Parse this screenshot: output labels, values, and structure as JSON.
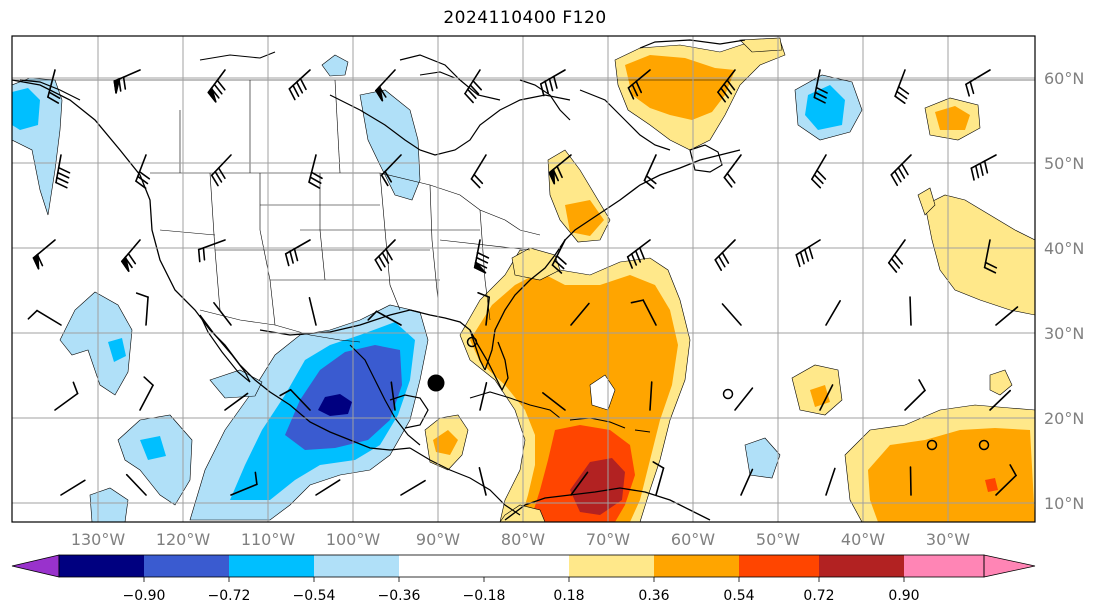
{
  "title": "2024110400 F120",
  "map": {
    "lon_labels": [
      "130°W",
      "120°W",
      "110°W",
      "100°W",
      "90°W",
      "80°W",
      "70°W",
      "60°W",
      "50°W",
      "40°W",
      "30°W"
    ],
    "lat_labels": [
      "60°N",
      "50°N",
      "40°N",
      "30°N",
      "20°N",
      "10°N"
    ],
    "gridlines": true
  },
  "colorbar": {
    "ticks": [
      "−0.90",
      "−0.72",
      "−0.54",
      "−0.36",
      "−0.18",
      "0.18",
      "0.36",
      "0.54",
      "0.72",
      "0.90"
    ],
    "colors": [
      "#9932cc",
      "#000080",
      "#3a5bd0",
      "#00bfff",
      "#b0e0f8",
      "#ffffff",
      "#ffe88a",
      "#ffa500",
      "#ff4500",
      "#b22222",
      "#ff85b5"
    ],
    "extend": "both"
  },
  "colors": {
    "neg_light": "#b0e0f8",
    "neg_mid": "#00bfff",
    "neg_strong": "#3a5bd0",
    "neg_darkest": "#000080",
    "pos_light": "#ffe88a",
    "pos_mid": "#ffa500",
    "pos_strong": "#ff4500",
    "pos_darkest": "#b22222"
  }
}
